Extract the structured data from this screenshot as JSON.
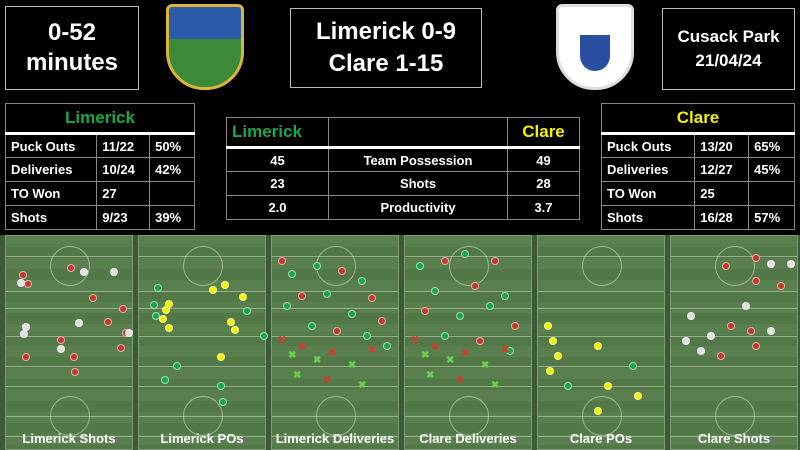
{
  "header": {
    "time_range": "0-52 minutes",
    "score_line1": "Limerick 0-9",
    "score_line2": "Clare 1-15",
    "venue": "Cusack Park",
    "date": "21/04/24"
  },
  "crests": {
    "limerick": "Luimneach ar Luimneach",
    "clare": "Clare"
  },
  "colors": {
    "limerick": "#1aa64a",
    "clare": "#f2f200",
    "miss": "#c0392b",
    "score": "#e0e0e0"
  },
  "limerick_table": {
    "team": "Limerick",
    "rows": [
      [
        "Puck Outs",
        "11/22",
        "50%"
      ],
      [
        "Deliveries",
        "10/24",
        "42%"
      ],
      [
        "TO Won",
        "27",
        ""
      ],
      [
        "Shots",
        "9/23",
        "39%"
      ]
    ]
  },
  "clare_table": {
    "team": "Clare",
    "rows": [
      [
        "Puck Outs",
        "13/20",
        "65%"
      ],
      [
        "Deliveries",
        "12/27",
        "45%"
      ],
      [
        "TO Won",
        "25",
        ""
      ],
      [
        "Shots",
        "16/28",
        "57%"
      ]
    ]
  },
  "comparison": {
    "left": "Limerick",
    "right": "Clare",
    "rows": [
      [
        "45",
        "Team Possession",
        "49"
      ],
      [
        "23",
        "Shots",
        "28"
      ],
      [
        "2.0",
        "Productivity",
        "3.7"
      ]
    ]
  },
  "panels": [
    "Limerick Shots",
    "Limerick POs",
    "Limerick Deliveries",
    "Clare Deliveries",
    "Clare POs",
    "Clare Shots"
  ]
}
